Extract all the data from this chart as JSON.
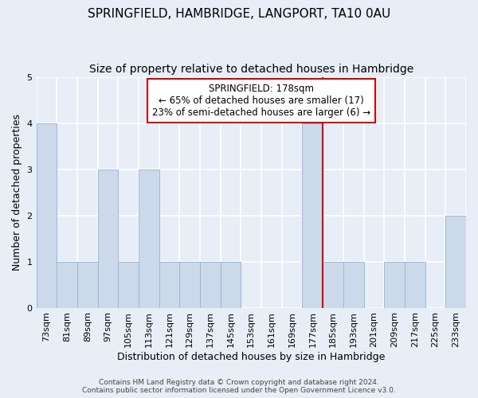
{
  "title": "SPRINGFIELD, HAMBRIDGE, LANGPORT, TA10 0AU",
  "subtitle": "Size of property relative to detached houses in Hambridge",
  "xlabel": "Distribution of detached houses by size in Hambridge",
  "ylabel": "Number of detached properties",
  "footer_line1": "Contains HM Land Registry data © Crown copyright and database right 2024.",
  "footer_line2": "Contains public sector information licensed under the Open Government Licence v3.0.",
  "categories": [
    "73sqm",
    "81sqm",
    "89sqm",
    "97sqm",
    "105sqm",
    "113sqm",
    "121sqm",
    "129sqm",
    "137sqm",
    "145sqm",
    "153sqm",
    "161sqm",
    "169sqm",
    "177sqm",
    "185sqm",
    "193sqm",
    "201sqm",
    "209sqm",
    "217sqm",
    "225sqm",
    "233sqm"
  ],
  "values": [
    4,
    1,
    1,
    3,
    1,
    3,
    1,
    1,
    1,
    1,
    0,
    0,
    0,
    4,
    1,
    1,
    0,
    1,
    1,
    0,
    2
  ],
  "bar_color": "#ccd9ea",
  "bar_edge_color": "#9ab8d8",
  "marker_index": 13,
  "marker_label": "SPRINGFIELD: 178sqm",
  "marker_line1": "← 65% of detached houses are smaller (17)",
  "marker_line2": "23% of semi-detached houses are larger (6) →",
  "marker_color": "#cc0000",
  "ylim": [
    0,
    5
  ],
  "yticks": [
    0,
    1,
    2,
    3,
    4,
    5
  ],
  "background_color": "#e8eef7",
  "grid_color": "#ffffff",
  "title_fontsize": 11,
  "subtitle_fontsize": 10,
  "tick_fontsize": 8,
  "annotation_fontsize": 8.5
}
